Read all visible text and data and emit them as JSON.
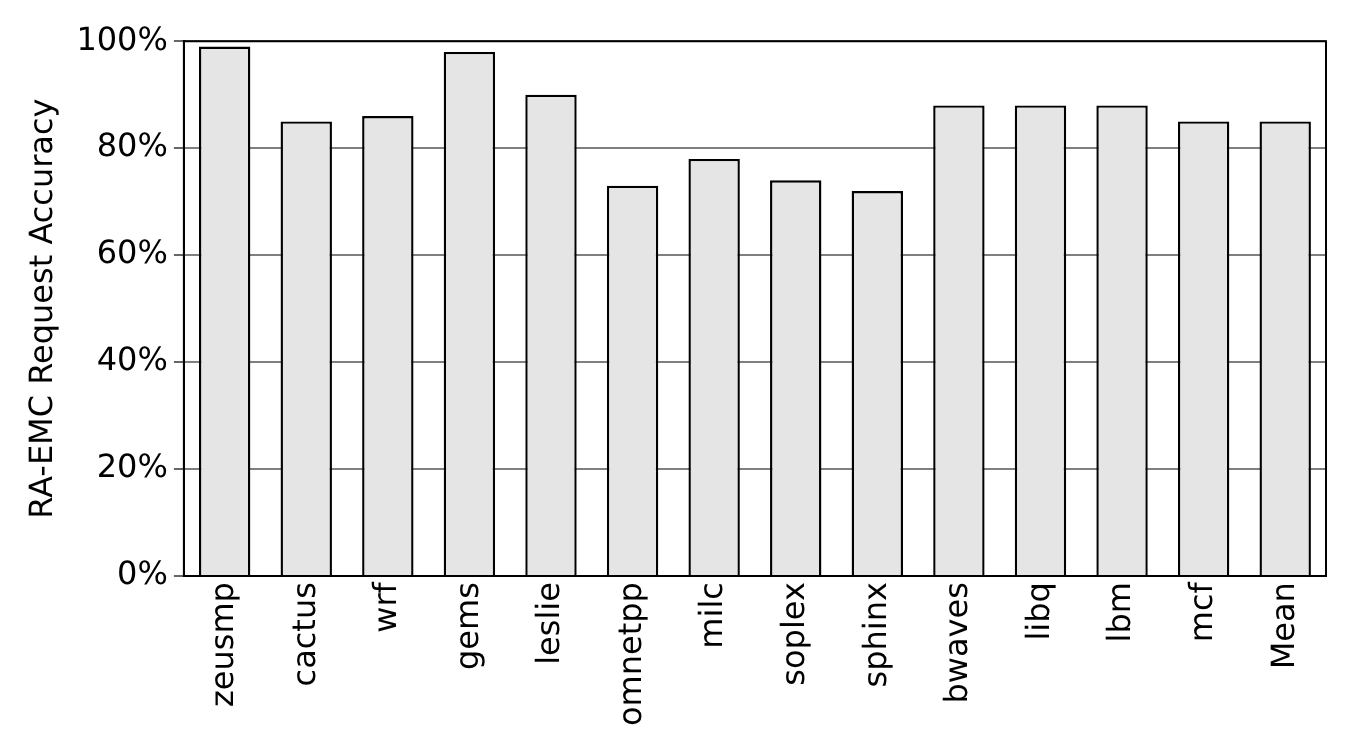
{
  "chart_data": {
    "type": "bar",
    "ylabel": "RA-EMC Request Accuracy",
    "categories": [
      "zeusmp",
      "cactus",
      "wrf",
      "gems",
      "leslie",
      "omnetpp",
      "milc",
      "soplex",
      "sphinx",
      "bwaves",
      "libq",
      "lbm",
      "mcf",
      "Mean"
    ],
    "values": [
      99,
      85,
      86,
      98,
      90,
      73,
      78,
      74,
      72,
      88,
      88,
      88,
      85,
      85
    ],
    "color": "#e5e5e5",
    "ylim": [
      0,
      100
    ],
    "yticks": [
      {
        "value": 0,
        "label": "0%"
      },
      {
        "value": 20,
        "label": "20%"
      },
      {
        "value": 40,
        "label": "40%"
      },
      {
        "value": 60,
        "label": "60%"
      },
      {
        "value": 80,
        "label": "80%"
      },
      {
        "value": 100,
        "label": "100%"
      }
    ],
    "grid": "y"
  }
}
